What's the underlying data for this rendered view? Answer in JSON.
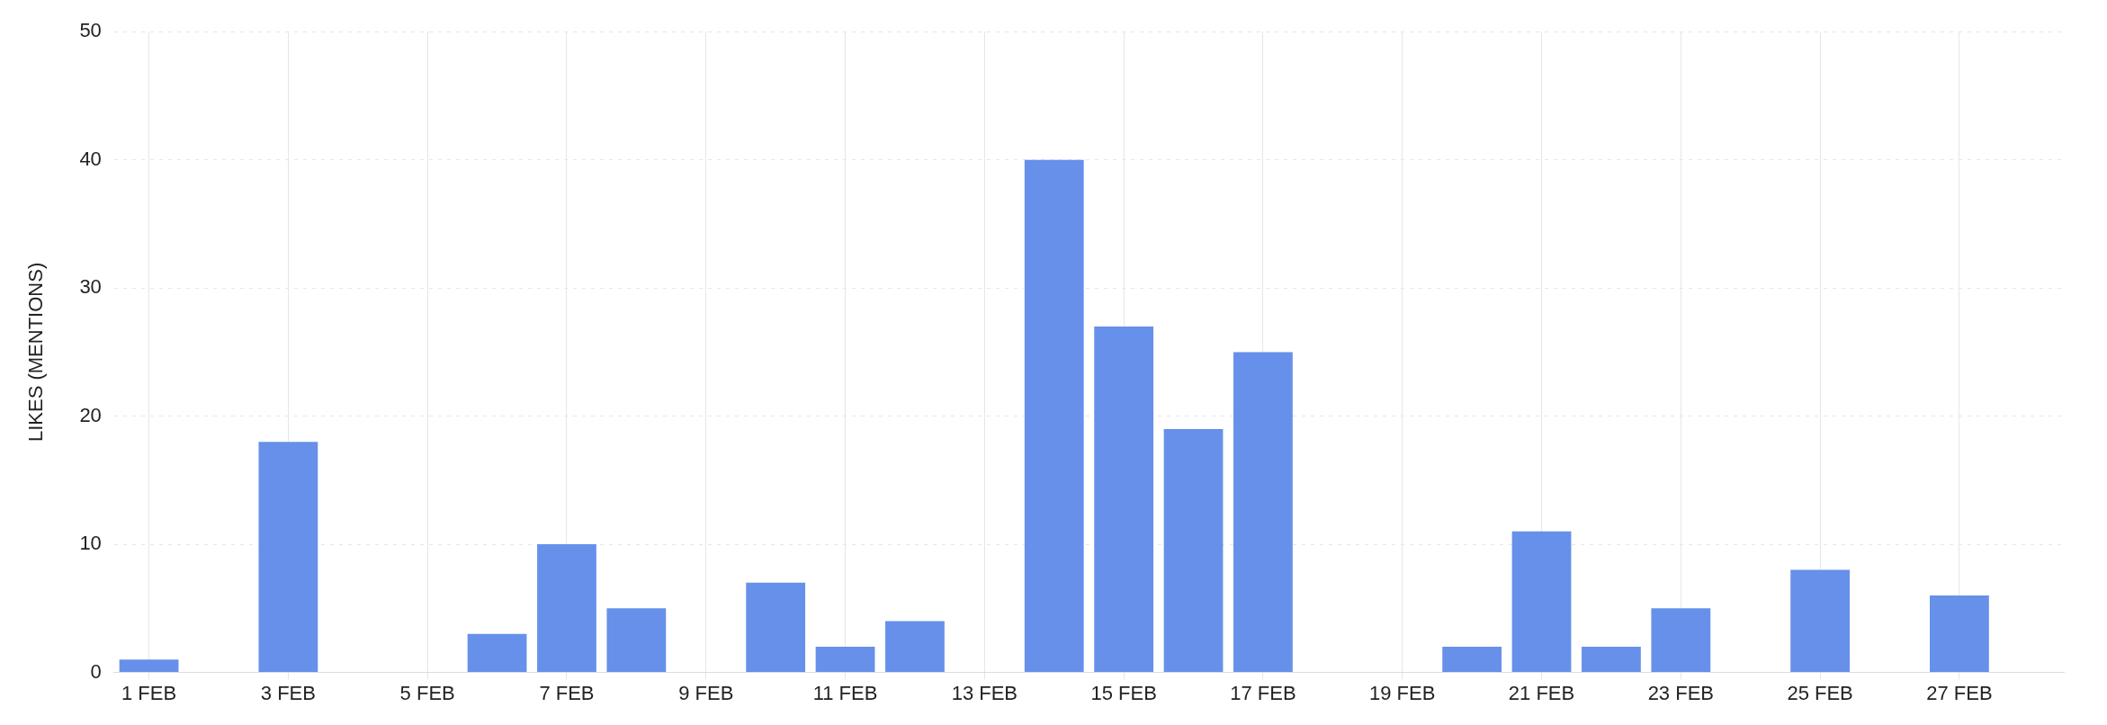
{
  "chart_data": {
    "type": "bar",
    "ylabel": "LIKES (MENTIONS)",
    "categories": [
      "1 FEB",
      null,
      "3 FEB",
      null,
      "5 FEB",
      null,
      "7 FEB",
      null,
      "9 FEB",
      null,
      "11 FEB",
      null,
      "13 FEB",
      null,
      "15 FEB",
      null,
      "17 FEB",
      null,
      "19 FEB",
      null,
      "21 FEB",
      null,
      "23 FEB",
      null,
      "25 FEB",
      null,
      "27 FEB",
      null
    ],
    "values": [
      1,
      0,
      18,
      0,
      0,
      3,
      10,
      5,
      0,
      7,
      2,
      4,
      0,
      40,
      27,
      19,
      25,
      0,
      0,
      2,
      11,
      2,
      5,
      0,
      8,
      0,
      6,
      0
    ],
    "color": "#6690ea",
    "ylim": [
      0,
      50
    ],
    "yticks": [
      0,
      10,
      20,
      30,
      40,
      50
    ],
    "grid": true
  }
}
